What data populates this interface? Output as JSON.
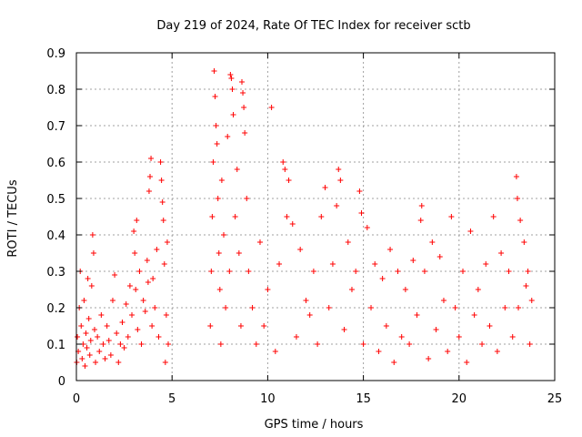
{
  "chart_data": {
    "type": "scatter",
    "title": "Day 219 of 2024, Rate Of TEC Index for receiver sctb",
    "xlabel": "GPS time / hours",
    "ylabel": "ROTI / TECUs",
    "xlim": [
      0,
      25
    ],
    "ylim": [
      0,
      0.9
    ],
    "xticks": [
      0,
      5,
      10,
      15,
      20,
      25
    ],
    "xtick_labels": [
      "0",
      "5",
      "10",
      "15",
      "20",
      "25"
    ],
    "yticks": [
      0,
      0.1,
      0.2,
      0.3,
      0.4,
      0.5,
      0.6,
      0.7,
      0.8,
      0.9
    ],
    "ytick_labels": [
      "0",
      "0.1",
      "0.2",
      "0.3",
      "0.4",
      "0.5",
      "0.6",
      "0.7",
      "0.8",
      "0.9"
    ],
    "grid": true,
    "marker": "+",
    "colors": {
      "series": "#ff0000",
      "grid": "#a0a0a0",
      "axis": "#000000"
    },
    "series": [
      {
        "points": [
          [
            0.02,
            0.05
          ],
          [
            0.05,
            0.12
          ],
          [
            0.1,
            0.08
          ],
          [
            0.15,
            0.2
          ],
          [
            0.2,
            0.3
          ],
          [
            0.25,
            0.15
          ],
          [
            0.3,
            0.06
          ],
          [
            0.35,
            0.1
          ],
          [
            0.4,
            0.22
          ],
          [
            0.45,
            0.04
          ],
          [
            0.5,
            0.13
          ],
          [
            0.55,
            0.09
          ],
          [
            0.6,
            0.28
          ],
          [
            0.65,
            0.17
          ],
          [
            0.7,
            0.07
          ],
          [
            0.75,
            0.11
          ],
          [
            0.8,
            0.26
          ],
          [
            0.85,
            0.4
          ],
          [
            0.9,
            0.35
          ],
          [
            0.95,
            0.14
          ],
          [
            1.0,
            0.05
          ],
          [
            1.1,
            0.12
          ],
          [
            1.2,
            0.08
          ],
          [
            1.3,
            0.18
          ],
          [
            1.4,
            0.1
          ],
          [
            1.5,
            0.06
          ],
          [
            1.6,
            0.15
          ],
          [
            1.7,
            0.11
          ],
          [
            1.8,
            0.07
          ],
          [
            1.9,
            0.22
          ],
          [
            2.0,
            0.29
          ],
          [
            2.1,
            0.13
          ],
          [
            2.2,
            0.05
          ],
          [
            2.3,
            0.1
          ],
          [
            2.4,
            0.16
          ],
          [
            2.5,
            0.09
          ],
          [
            2.6,
            0.21
          ],
          [
            2.7,
            0.12
          ],
          [
            2.8,
            0.26
          ],
          [
            2.9,
            0.18
          ],
          [
            3.0,
            0.41
          ],
          [
            3.05,
            0.35
          ],
          [
            3.1,
            0.25
          ],
          [
            3.15,
            0.44
          ],
          [
            3.2,
            0.14
          ],
          [
            3.3,
            0.3
          ],
          [
            3.4,
            0.1
          ],
          [
            3.5,
            0.22
          ],
          [
            3.6,
            0.19
          ],
          [
            3.7,
            0.33
          ],
          [
            3.75,
            0.27
          ],
          [
            3.8,
            0.52
          ],
          [
            3.85,
            0.56
          ],
          [
            3.9,
            0.61
          ],
          [
            3.95,
            0.15
          ],
          [
            4.0,
            0.28
          ],
          [
            4.1,
            0.2
          ],
          [
            4.2,
            0.36
          ],
          [
            4.3,
            0.12
          ],
          [
            4.4,
            0.6
          ],
          [
            4.45,
            0.55
          ],
          [
            4.5,
            0.49
          ],
          [
            4.55,
            0.44
          ],
          [
            4.6,
            0.32
          ],
          [
            4.65,
            0.05
          ],
          [
            4.7,
            0.18
          ],
          [
            4.75,
            0.38
          ],
          [
            4.8,
            0.1
          ],
          [
            7.0,
            0.15
          ],
          [
            7.05,
            0.3
          ],
          [
            7.1,
            0.45
          ],
          [
            7.15,
            0.6
          ],
          [
            7.2,
            0.85
          ],
          [
            7.25,
            0.78
          ],
          [
            7.3,
            0.7
          ],
          [
            7.35,
            0.65
          ],
          [
            7.4,
            0.5
          ],
          [
            7.45,
            0.35
          ],
          [
            7.5,
            0.25
          ],
          [
            7.55,
            0.1
          ],
          [
            7.6,
            0.55
          ],
          [
            7.7,
            0.4
          ],
          [
            7.8,
            0.2
          ],
          [
            7.9,
            0.67
          ],
          [
            8.0,
            0.3
          ],
          [
            8.05,
            0.84
          ],
          [
            8.1,
            0.83
          ],
          [
            8.15,
            0.8
          ],
          [
            8.2,
            0.73
          ],
          [
            8.3,
            0.45
          ],
          [
            8.4,
            0.58
          ],
          [
            8.5,
            0.35
          ],
          [
            8.6,
            0.15
          ],
          [
            8.65,
            0.82
          ],
          [
            8.7,
            0.79
          ],
          [
            8.75,
            0.75
          ],
          [
            8.8,
            0.68
          ],
          [
            8.9,
            0.5
          ],
          [
            9.0,
            0.3
          ],
          [
            9.2,
            0.2
          ],
          [
            9.4,
            0.1
          ],
          [
            9.6,
            0.38
          ],
          [
            9.8,
            0.15
          ],
          [
            10.0,
            0.25
          ],
          [
            10.2,
            0.75
          ],
          [
            10.4,
            0.08
          ],
          [
            10.6,
            0.32
          ],
          [
            10.8,
            0.6
          ],
          [
            10.9,
            0.58
          ],
          [
            11.0,
            0.45
          ],
          [
            11.1,
            0.55
          ],
          [
            11.3,
            0.43
          ],
          [
            11.5,
            0.12
          ],
          [
            11.7,
            0.36
          ],
          [
            12.0,
            0.22
          ],
          [
            12.2,
            0.18
          ],
          [
            12.4,
            0.3
          ],
          [
            12.6,
            0.1
          ],
          [
            12.8,
            0.45
          ],
          [
            13.0,
            0.53
          ],
          [
            13.2,
            0.2
          ],
          [
            13.4,
            0.32
          ],
          [
            13.6,
            0.48
          ],
          [
            13.7,
            0.58
          ],
          [
            13.8,
            0.55
          ],
          [
            14.0,
            0.14
          ],
          [
            14.2,
            0.38
          ],
          [
            14.4,
            0.25
          ],
          [
            14.6,
            0.3
          ],
          [
            14.8,
            0.52
          ],
          [
            14.9,
            0.46
          ],
          [
            15.0,
            0.1
          ],
          [
            15.2,
            0.42
          ],
          [
            15.4,
            0.2
          ],
          [
            15.6,
            0.32
          ],
          [
            15.8,
            0.08
          ],
          [
            16.0,
            0.28
          ],
          [
            16.2,
            0.15
          ],
          [
            16.4,
            0.36
          ],
          [
            16.6,
            0.05
          ],
          [
            16.8,
            0.3
          ],
          [
            17.0,
            0.12
          ],
          [
            17.2,
            0.25
          ],
          [
            17.4,
            0.1
          ],
          [
            17.6,
            0.33
          ],
          [
            17.8,
            0.18
          ],
          [
            18.0,
            0.44
          ],
          [
            18.05,
            0.48
          ],
          [
            18.2,
            0.3
          ],
          [
            18.4,
            0.06
          ],
          [
            18.6,
            0.38
          ],
          [
            18.8,
            0.14
          ],
          [
            19.0,
            0.34
          ],
          [
            19.2,
            0.22
          ],
          [
            19.4,
            0.08
          ],
          [
            19.6,
            0.45
          ],
          [
            19.8,
            0.2
          ],
          [
            20.0,
            0.12
          ],
          [
            20.2,
            0.3
          ],
          [
            20.4,
            0.05
          ],
          [
            20.6,
            0.41
          ],
          [
            20.8,
            0.18
          ],
          [
            21.0,
            0.25
          ],
          [
            21.2,
            0.1
          ],
          [
            21.4,
            0.32
          ],
          [
            21.6,
            0.15
          ],
          [
            21.8,
            0.45
          ],
          [
            22.0,
            0.08
          ],
          [
            22.2,
            0.35
          ],
          [
            22.4,
            0.2
          ],
          [
            22.6,
            0.3
          ],
          [
            22.8,
            0.12
          ],
          [
            23.0,
            0.56
          ],
          [
            23.05,
            0.5
          ],
          [
            23.1,
            0.2
          ],
          [
            23.2,
            0.44
          ],
          [
            23.4,
            0.38
          ],
          [
            23.5,
            0.26
          ],
          [
            23.6,
            0.3
          ],
          [
            23.7,
            0.1
          ],
          [
            23.8,
            0.22
          ]
        ]
      }
    ]
  }
}
